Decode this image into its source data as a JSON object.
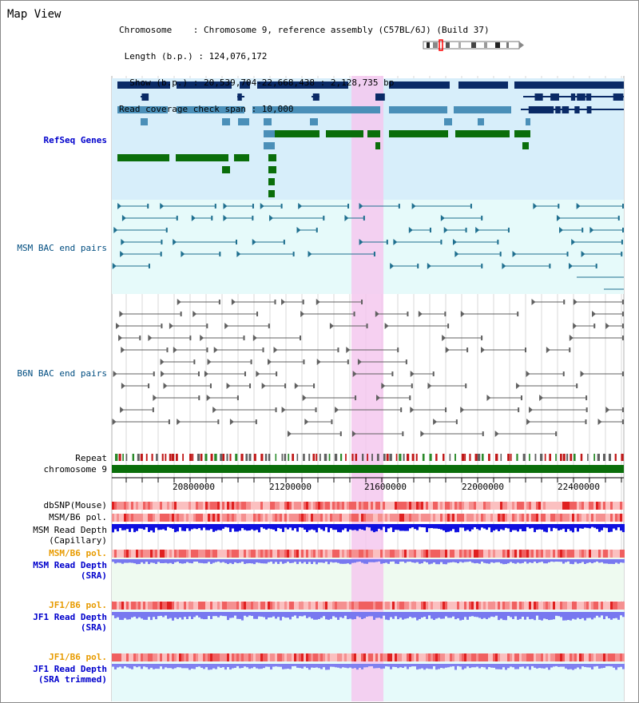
{
  "page": {
    "title": "Map View"
  },
  "info": {
    "chromosome_line": "Chromosome    : Chromosome 9, reference assembly (C57BL/6J) (Build 37)",
    "length_line": " Length (b.p.) : 124,076,172",
    "show_line": "  Show (b.p.) : 20,539,704-22,668,438 : 2,128,735 bp",
    "span_line": "Read coverage check span : 10,000"
  },
  "tracks": {
    "refseq": "RefSeq Genes",
    "msm_bac": "MSM BAC end pairs",
    "b6n_bac": "B6N BAC end pairs",
    "repeat": "Repeat",
    "chromosome": "chromosome 9",
    "dbsnp": "dbSNP(Mouse)",
    "msm_b6_pol": "MSM/B6 pol.",
    "msm_depth_cap_1": "MSM Read Depth",
    "msm_depth_cap_2": "(Capillary)",
    "msm_b6_pol_sra": "MSM/B6 pol.",
    "msm_depth_sra_1": "MSM Read Depth",
    "msm_depth_sra_2": "(SRA)",
    "jf1_b6_pol": "JF1/B6 pol.",
    "jf1_depth_1": "JF1 Read Depth",
    "jf1_depth_2": "(SRA)",
    "jf1_b6_pol_trim": "JF1/B6 pol.",
    "jf1_depth_trim_1": "JF1 Read Depth",
    "jf1_depth_trim_2": "(SRA trimmed)"
  },
  "axis": {
    "ticks": [
      "20800000",
      "21200000",
      "21600000",
      "22000000",
      "22400000"
    ]
  },
  "colors": {
    "highlight": "#f5c8ee",
    "refseq_bg": "#d7eefa",
    "bac_bg": "#e6fafa",
    "gene_dark": "#0a2a66",
    "gene_mid": "#4a8fb8",
    "gene_green": "#0a6e0a",
    "chrom_green": "#0a6e0a",
    "msm_line": "#1f6f8f",
    "b6n_line": "#606060",
    "depth_blue": "#1010e0",
    "depth_light": "#7878f0",
    "pol_red": "#f07070"
  }
}
